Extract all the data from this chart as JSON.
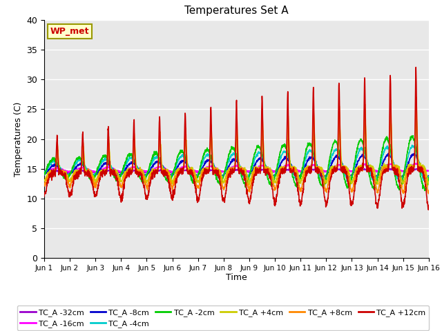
{
  "title": "Temperatures Set A",
  "xlabel": "Time",
  "ylabel": "Temperatures (C)",
  "annotation_text": "WP_met",
  "annotation_bg": "#FFFFCC",
  "annotation_border": "#999900",
  "annotation_text_color": "#CC0000",
  "ylim": [
    0,
    40
  ],
  "yticks": [
    0,
    5,
    10,
    15,
    20,
    25,
    30,
    35,
    40
  ],
  "x_labels": [
    "Jun 1",
    "Jun 2",
    "Jun 3",
    "Jun 4",
    "Jun 5",
    "Jun 6",
    "Jun 7",
    "Jun 8",
    "Jun 9",
    "Jun 10",
    "Jun 11",
    "Jun 12",
    "Jun 13",
    "Jun 14",
    "Jun 15",
    "Jun 16"
  ],
  "bg_color": "#E8E8E8",
  "series": [
    {
      "label": "TC_A -32cm",
      "color": "#9900CC",
      "lw": 1.2
    },
    {
      "label": "TC_A -16cm",
      "color": "#FF00FF",
      "lw": 1.2
    },
    {
      "label": "TC_A -8cm",
      "color": "#0000CC",
      "lw": 1.2
    },
    {
      "label": "TC_A -4cm",
      "color": "#00CCCC",
      "lw": 1.2
    },
    {
      "label": "TC_A -2cm",
      "color": "#00CC00",
      "lw": 1.2
    },
    {
      "label": "TC_A +4cm",
      "color": "#CCCC00",
      "lw": 1.2
    },
    {
      "label": "TC_A +8cm",
      "color": "#FF8800",
      "lw": 1.2
    },
    {
      "label": "TC_A +12cm",
      "color": "#CC0000",
      "lw": 1.2
    }
  ],
  "legend_ncol": 6
}
